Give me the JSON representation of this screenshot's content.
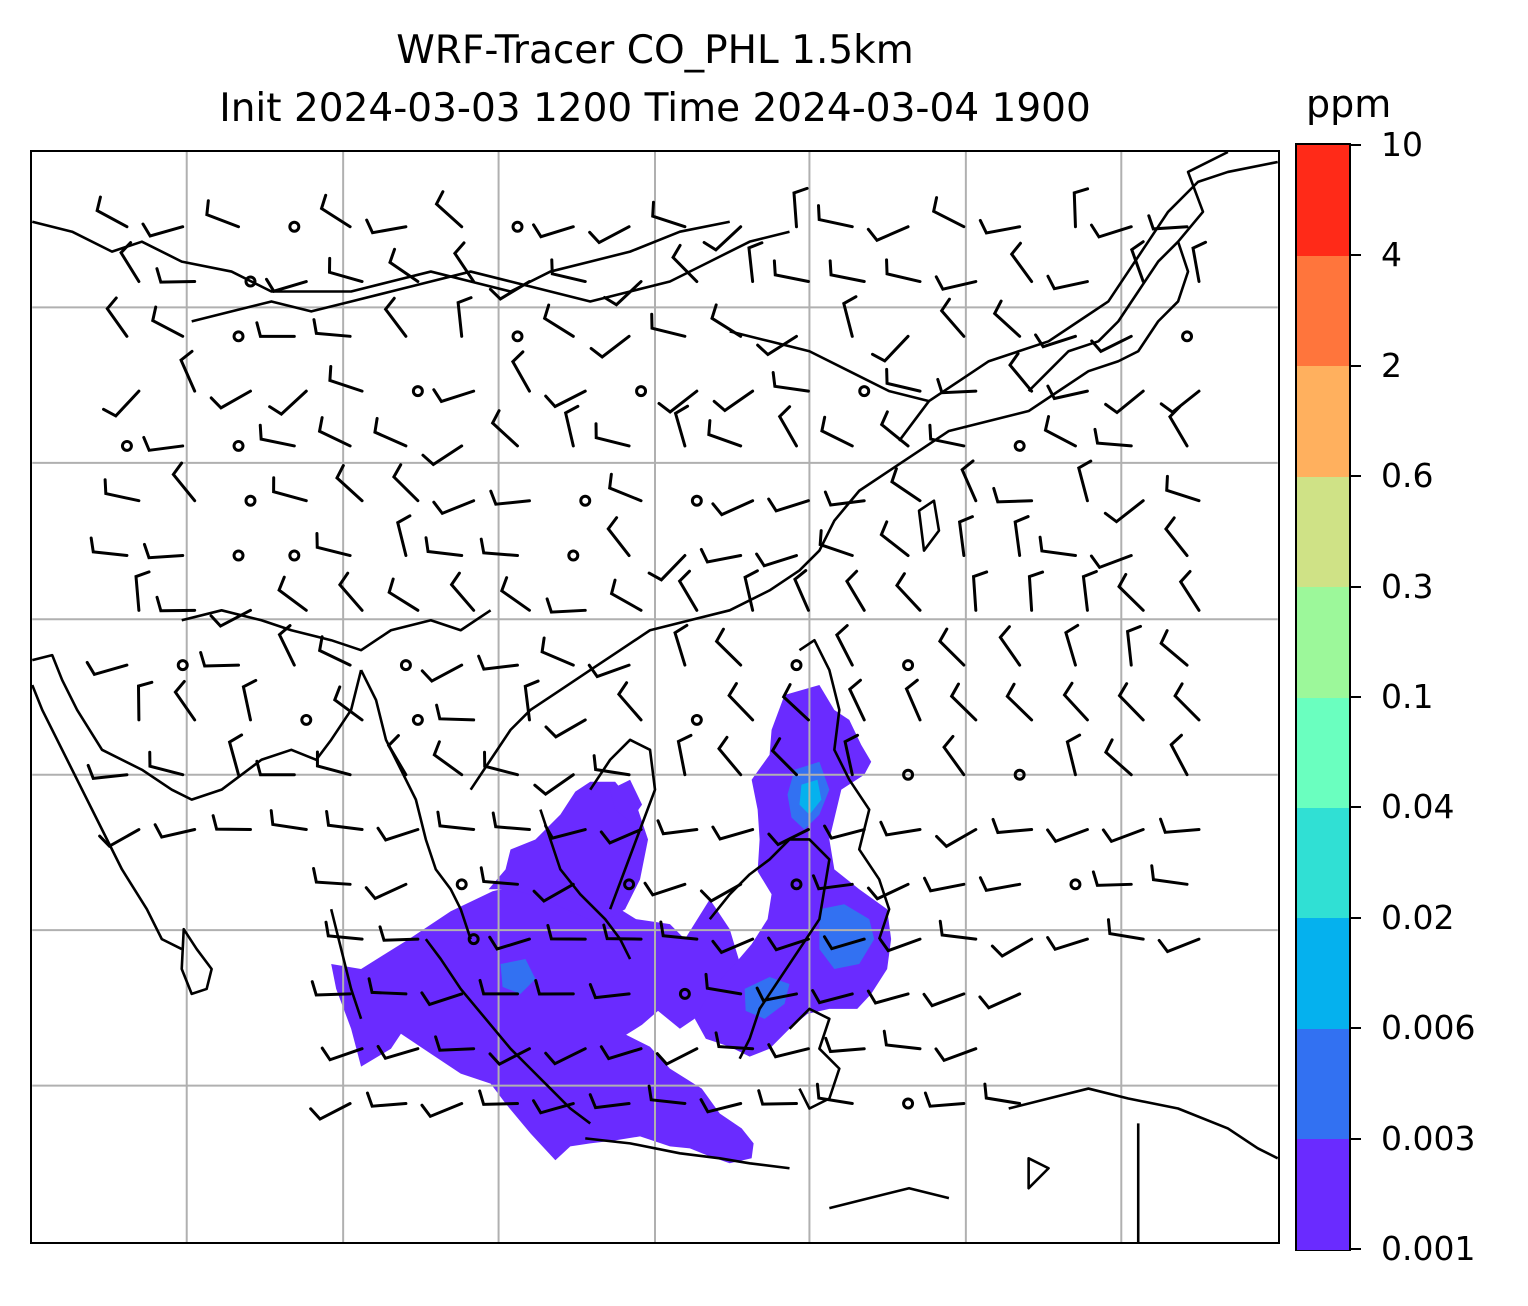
{
  "title": {
    "line1": "WRF-Tracer CO_PHL 1.5km",
    "line2": "Init 2024-03-03 1200 Time 2024-03-04 1900"
  },
  "colorbar": {
    "unit": "ppm",
    "levels": [
      "0.001",
      "0.003",
      "0.006",
      "0.02",
      "0.04",
      "0.1",
      "0.3",
      "0.6",
      "2",
      "4",
      "10"
    ],
    "colors": [
      "#6a2bff",
      "#3271f2",
      "#05b1ee",
      "#30e0d4",
      "#6affbf",
      "#9cf89a",
      "#cfe286",
      "#ffb05e",
      "#ff753c",
      "#ff2a18"
    ]
  },
  "map": {
    "gridlines": true,
    "coastline_color": "#000000",
    "gridline_color": "#b0b0b0",
    "tracer_field_icon": "tracer-concentration-shading",
    "wind_symbol_icon": "wind-barb"
  }
}
